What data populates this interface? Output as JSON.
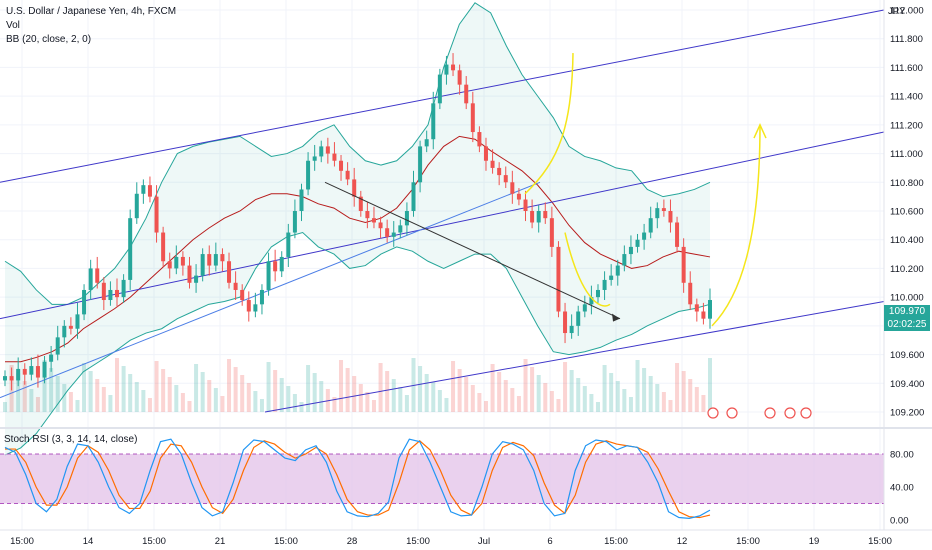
{
  "legend": {
    "symbol": "U.S. Dollar / Japanese Yen, 4h, FXCM",
    "vol": "Vol",
    "bb": "BB (20, close, 2, 0)"
  },
  "currency": "JPY",
  "price_tag": {
    "price": "109.970",
    "countdown": "02:02:25"
  },
  "stoch_label": "Stoch RSI (3, 3, 14, 14, close)",
  "colors": {
    "up": "#26a69a",
    "down": "#ef5350",
    "bb": "#26a69a",
    "basis": "#b71c1c",
    "channel": "#3f37c9",
    "trend": "#4c7ee6",
    "arrow": "#333333",
    "projection": "#f5e61a",
    "rsi_k": "#2196f3",
    "rsi_d": "#ff6d00",
    "rsi_band": "#e1bee7"
  },
  "chart_data": [
    {
      "type": "candlestick",
      "title": "U.S. Dollar / Japanese Yen, 4h, FXCM",
      "y_ticks": [
        "112.000",
        "111.800",
        "111.600",
        "111.400",
        "111.200",
        "111.000",
        "110.800",
        "110.600",
        "110.400",
        "110.200",
        "110.000",
        "109.800",
        "109.600",
        "109.400",
        "109.200"
      ],
      "x_ticks": [
        "15:00",
        "14",
        "15:00",
        "21",
        "15:00",
        "28",
        "15:00",
        "Jul",
        "6",
        "15:00",
        "12",
        "15:00",
        "19",
        "15:00"
      ],
      "ylim": [
        109.15,
        112.2
      ],
      "close_path": [
        109.45,
        109.42,
        109.5,
        109.46,
        109.52,
        109.44,
        109.55,
        109.6,
        109.72,
        109.8,
        109.78,
        109.88,
        110.05,
        110.2,
        110.1,
        109.98,
        110.05,
        110.0,
        110.12,
        110.55,
        110.72,
        110.78,
        110.7,
        110.45,
        110.25,
        110.2,
        110.28,
        110.22,
        110.1,
        110.15,
        110.3,
        110.22,
        110.3,
        110.25,
        110.1,
        110.05,
        109.98,
        109.9,
        109.95,
        110.05,
        110.25,
        110.18,
        110.28,
        110.45,
        110.6,
        110.75,
        110.95,
        110.98,
        111.05,
        111.0,
        110.95,
        110.88,
        110.82,
        110.7,
        110.6,
        110.55,
        110.52,
        110.48,
        110.42,
        110.45,
        110.5,
        110.6,
        110.8,
        111.05,
        111.1,
        111.35,
        111.55,
        111.62,
        111.58,
        111.48,
        111.35,
        111.15,
        111.05,
        110.95,
        110.9,
        110.85,
        110.8,
        110.72,
        110.68,
        110.6,
        110.52,
        110.6,
        110.55,
        110.35,
        109.9,
        109.75,
        109.8,
        109.9,
        109.95,
        110.0,
        110.05,
        110.12,
        110.15,
        110.22,
        110.3,
        110.35,
        110.4,
        110.45,
        110.55,
        110.62,
        110.6,
        110.52,
        110.35,
        110.1,
        109.95,
        109.9,
        109.85,
        109.98
      ],
      "bollinger": {
        "upper": [
          110.25,
          110.18,
          110.05,
          109.95,
          109.95,
          110.0,
          110.1,
          110.2,
          110.35,
          110.55,
          110.8,
          111.0,
          111.05,
          111.08,
          111.1,
          111.12,
          111.05,
          110.98,
          111.0,
          111.05,
          111.15,
          111.2,
          111.05,
          110.95,
          110.92,
          110.95,
          111.05,
          111.2,
          111.6,
          111.9,
          112.05,
          111.98,
          111.75,
          111.55,
          111.4,
          111.25,
          111.05,
          110.98,
          110.95,
          110.9,
          110.88,
          110.75,
          110.7,
          110.72,
          110.75,
          110.8
        ],
        "basis": [
          109.55,
          109.55,
          109.58,
          109.62,
          109.68,
          109.78,
          109.85,
          109.92,
          110.0,
          110.1,
          110.2,
          110.3,
          110.4,
          110.48,
          110.55,
          110.6,
          110.68,
          110.72,
          110.72,
          110.7,
          110.65,
          110.62,
          110.55,
          110.52,
          110.55,
          110.62,
          110.75,
          110.92,
          111.05,
          111.12,
          111.1,
          111.02,
          110.95,
          110.88,
          110.78,
          110.65,
          110.5,
          110.38,
          110.3,
          110.25,
          110.2,
          110.22,
          110.28,
          110.32,
          110.3,
          110.28
        ],
        "lower": [
          108.9,
          108.95,
          109.05,
          109.2,
          109.35,
          109.48,
          109.55,
          109.62,
          109.7,
          109.75,
          109.78,
          109.85,
          109.9,
          109.95,
          109.97,
          110.0,
          110.2,
          110.35,
          110.42,
          110.45,
          110.35,
          110.3,
          110.2,
          110.22,
          110.3,
          110.35,
          110.32,
          110.25,
          110.2,
          110.25,
          110.3,
          110.3,
          110.2,
          110.0,
          109.8,
          109.62,
          109.6,
          109.62,
          109.65,
          109.7,
          109.74,
          109.8,
          109.85,
          109.9,
          109.92,
          109.95
        ]
      },
      "channel_lines": [
        {
          "from": [
            "start",
            110.8
          ],
          "to": [
            "end",
            112.0
          ]
        },
        {
          "from": [
            "start",
            109.85
          ],
          "to": [
            "end",
            111.15
          ]
        },
        {
          "from": [
            "mid",
            109.2
          ],
          "to": [
            "end",
            109.97
          ]
        }
      ]
    },
    {
      "type": "line",
      "title": "Stoch RSI (3, 3, 14, 14, close)",
      "y_ticks": [
        "80.00",
        "40.00",
        "0.00"
      ],
      "ylim": [
        -8,
        100
      ],
      "band": [
        20,
        80
      ],
      "k": [
        88,
        82,
        55,
        20,
        10,
        25,
        65,
        92,
        90,
        70,
        40,
        15,
        8,
        20,
        60,
        95,
        98,
        80,
        45,
        15,
        5,
        10,
        45,
        85,
        97,
        95,
        85,
        75,
        72,
        85,
        90,
        70,
        35,
        10,
        5,
        4,
        8,
        22,
        75,
        98,
        95,
        70,
        40,
        10,
        5,
        6,
        40,
        80,
        95,
        92,
        85,
        60,
        20,
        5,
        8,
        60,
        90,
        97,
        95,
        85,
        90,
        88,
        70,
        45,
        10,
        3,
        2,
        5,
        12
      ],
      "d": [
        86,
        86,
        70,
        40,
        18,
        18,
        40,
        75,
        90,
        82,
        60,
        30,
        14,
        14,
        35,
        75,
        92,
        90,
        70,
        40,
        15,
        8,
        25,
        60,
        88,
        96,
        92,
        82,
        75,
        80,
        88,
        80,
        55,
        25,
        10,
        6,
        6,
        12,
        45,
        85,
        96,
        85,
        60,
        30,
        12,
        6,
        20,
        60,
        88,
        94,
        90,
        78,
        45,
        18,
        8,
        30,
        70,
        92,
        96,
        92,
        90,
        88,
        82,
        62,
        35,
        10,
        4,
        3,
        6
      ]
    }
  ]
}
